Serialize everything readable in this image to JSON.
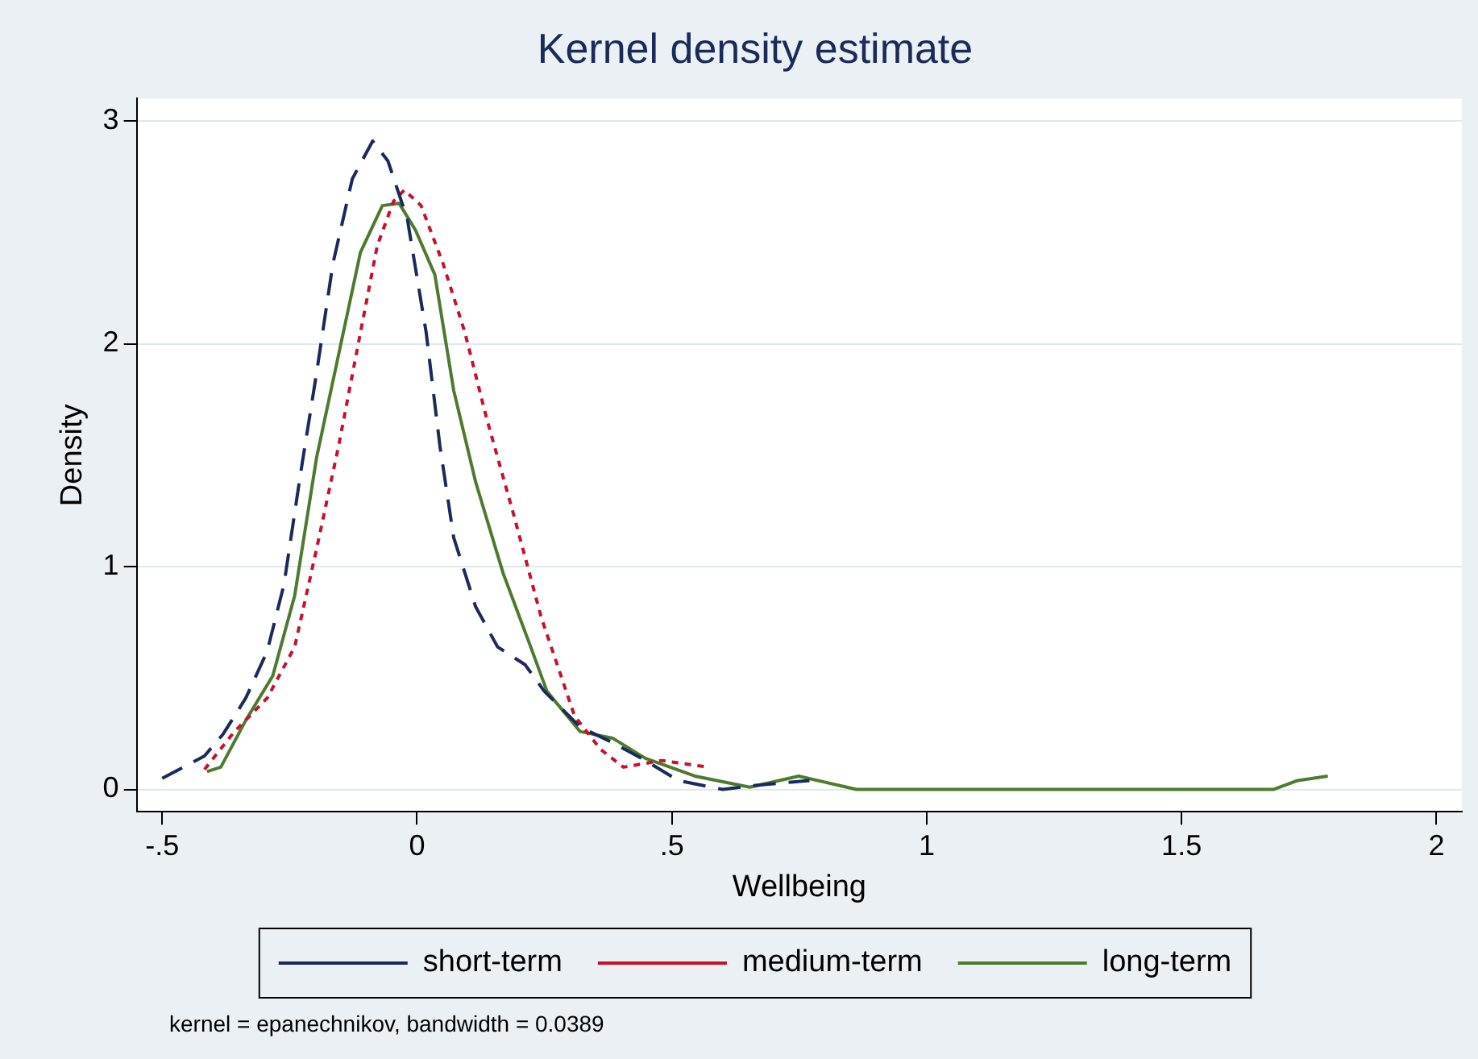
{
  "chart_data": {
    "type": "line",
    "title": "Kernel density estimate",
    "xlabel": "Wellbeing",
    "ylabel": "Density",
    "xlim": [
      -0.55,
      2.05
    ],
    "ylim": [
      -0.1,
      3.1
    ],
    "xticks": [
      {
        "value": -0.5,
        "label": "-.5"
      },
      0,
      {
        "value": 0.5,
        "label": ".5"
      },
      1,
      1.5,
      2
    ],
    "yticks": [
      0,
      1,
      2,
      3
    ],
    "grid": "y",
    "legend": "bottom",
    "marker": "none",
    "annotations": [
      "kernel = epanechnikov, bandwidth = 0.0389"
    ],
    "series": [
      {
        "name": "short-term",
        "color": "#1a2a5a",
        "line_style": "dashed",
        "x": [
          -0.5,
          -0.417,
          -0.38,
          -0.336,
          -0.294,
          -0.261,
          -0.229,
          -0.197,
          -0.165,
          -0.127,
          -0.087,
          -0.057,
          -0.019,
          0.018,
          0.045,
          0.072,
          0.115,
          0.158,
          0.212,
          0.25,
          0.32,
          0.384,
          0.448,
          0.513,
          0.6,
          0.65,
          0.77
        ],
        "values": [
          0.05,
          0.15,
          0.25,
          0.41,
          0.62,
          0.92,
          1.41,
          1.87,
          2.36,
          2.74,
          2.91,
          2.82,
          2.56,
          2.05,
          1.54,
          1.13,
          0.82,
          0.64,
          0.56,
          0.44,
          0.28,
          0.21,
          0.13,
          0.04,
          0.0,
          0.015,
          0.04
        ]
      },
      {
        "name": "medium-term",
        "color": "#c8102e",
        "line_style": "dotted",
        "x": [
          -0.417,
          -0.358,
          -0.294,
          -0.24,
          -0.197,
          -0.154,
          -0.111,
          -0.078,
          -0.046,
          -0.025,
          0.008,
          0.051,
          0.094,
          0.136,
          0.19,
          0.244,
          0.309,
          0.36,
          0.405,
          0.48,
          0.572
        ],
        "values": [
          0.09,
          0.26,
          0.41,
          0.64,
          1.08,
          1.54,
          2.05,
          2.44,
          2.64,
          2.69,
          2.62,
          2.36,
          2.05,
          1.67,
          1.23,
          0.77,
          0.33,
          0.18,
          0.1,
          0.13,
          0.1
        ]
      },
      {
        "name": "long-term",
        "color": "#4e7a30",
        "line_style": "solid",
        "x": [
          -0.412,
          -0.385,
          -0.336,
          -0.283,
          -0.24,
          -0.197,
          -0.154,
          -0.111,
          -0.068,
          -0.035,
          -0.003,
          0.035,
          0.072,
          0.115,
          0.169,
          0.223,
          0.255,
          0.32,
          0.384,
          0.448,
          0.545,
          0.653,
          0.749,
          0.862,
          1.68,
          1.728,
          1.787
        ],
        "values": [
          0.08,
          0.1,
          0.31,
          0.51,
          0.87,
          1.49,
          1.95,
          2.41,
          2.62,
          2.63,
          2.51,
          2.31,
          1.79,
          1.38,
          0.97,
          0.64,
          0.44,
          0.26,
          0.23,
          0.14,
          0.06,
          0.01,
          0.06,
          0.0,
          0.0,
          0.04,
          0.06
        ]
      }
    ]
  }
}
